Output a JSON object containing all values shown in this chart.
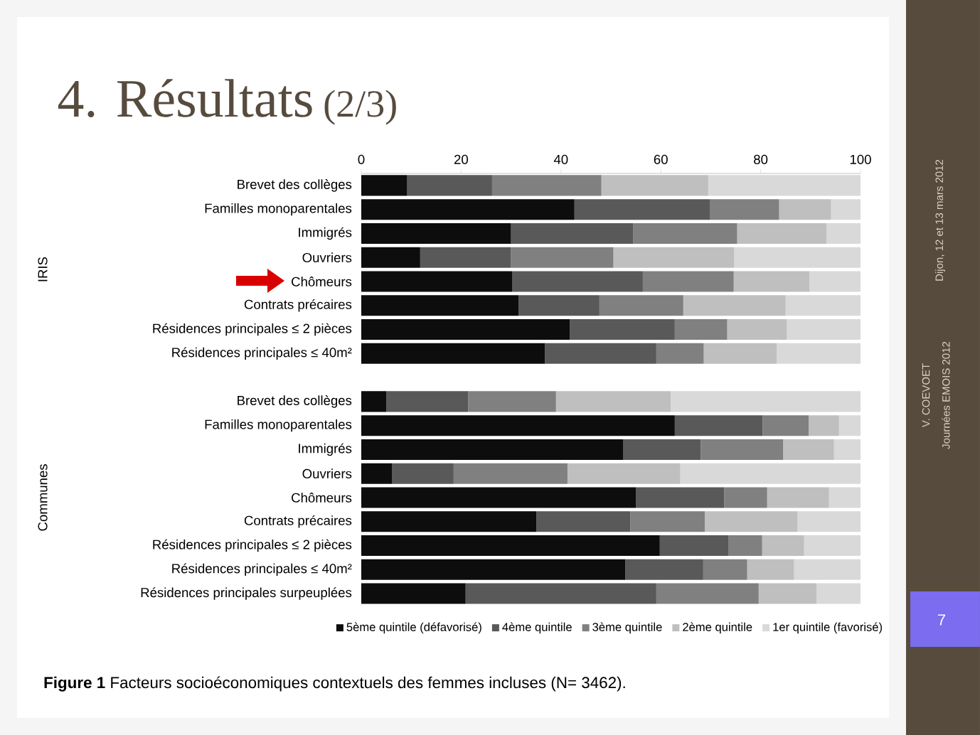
{
  "chart_data": {
    "type": "bar",
    "orientation": "horizontal",
    "stacked": true,
    "title": "4. Résultats",
    "subtitle": "(2/3)",
    "categories": [
      "Brevet des collèges",
      "Familles monoparentales",
      "Immigrés",
      "Ouvriers",
      "Chômeurs",
      "Contrats précaires",
      "Résidences principales ≤ 2 pièces",
      "Résidences principales ≤ 40m²",
      null,
      "Brevet des collèges",
      "Familles monoparentales",
      "Immigrés",
      "Ouvriers",
      "Chômeurs",
      "Contrats précaires",
      "Résidences principales ≤ 2 pièces",
      "Résidences principales ≤ 40m²",
      "Résidences principales surpeuplées"
    ],
    "series": [
      {
        "name": "5ème quintile (défavorisé)",
        "color": "#0d0d0d",
        "values": [
          9.2,
          42.7,
          30.0,
          11.8,
          30.2,
          31.5,
          41.8,
          36.8,
          null,
          5.0,
          62.8,
          52.5,
          6.2,
          55.0,
          35.1,
          59.8,
          52.9,
          20.9
        ]
      },
      {
        "name": "4ème quintile",
        "color": "#595959",
        "values": [
          17.0,
          27.2,
          24.5,
          18.2,
          26.2,
          16.2,
          21.0,
          22.3,
          null,
          16.4,
          17.6,
          15.5,
          12.3,
          17.7,
          18.8,
          13.8,
          15.6,
          38.2
        ]
      },
      {
        "name": "3ème quintile",
        "color": "#808080",
        "values": [
          21.9,
          13.8,
          20.8,
          20.5,
          18.2,
          16.8,
          10.5,
          9.5,
          null,
          17.6,
          9.2,
          16.5,
          22.8,
          8.6,
          14.9,
          6.7,
          8.8,
          20.5
        ]
      },
      {
        "name": "2ème quintile",
        "color": "#bfbfbf",
        "values": [
          21.4,
          10.4,
          17.9,
          24.2,
          15.2,
          20.5,
          11.9,
          14.6,
          null,
          23.0,
          6.1,
          10.2,
          22.6,
          12.4,
          18.6,
          8.4,
          9.4,
          11.6
        ]
      },
      {
        "name": "1er quintile (favorisé)",
        "color": "#d9d9d9",
        "values": [
          30.5,
          5.9,
          6.8,
          25.3,
          10.2,
          15.0,
          14.8,
          16.8,
          null,
          38.0,
          4.3,
          5.3,
          36.1,
          6.3,
          12.6,
          11.3,
          13.3,
          8.8
        ]
      }
    ],
    "xlim": [
      0,
      100
    ],
    "xticks": [
      0,
      20,
      40,
      60,
      80,
      100
    ],
    "grid": false,
    "legend": "bottom",
    "annotations": [
      "IRIS",
      "Communes",
      "**Figure 1**  Facteurs socioéconomiques contextuels des femmes incluses (N= 3462).",
      "Dijon, 12 et 13 mars 2012",
      "V. COEVOET",
      "Journées EMOIS 2012",
      "7"
    ]
  }
}
